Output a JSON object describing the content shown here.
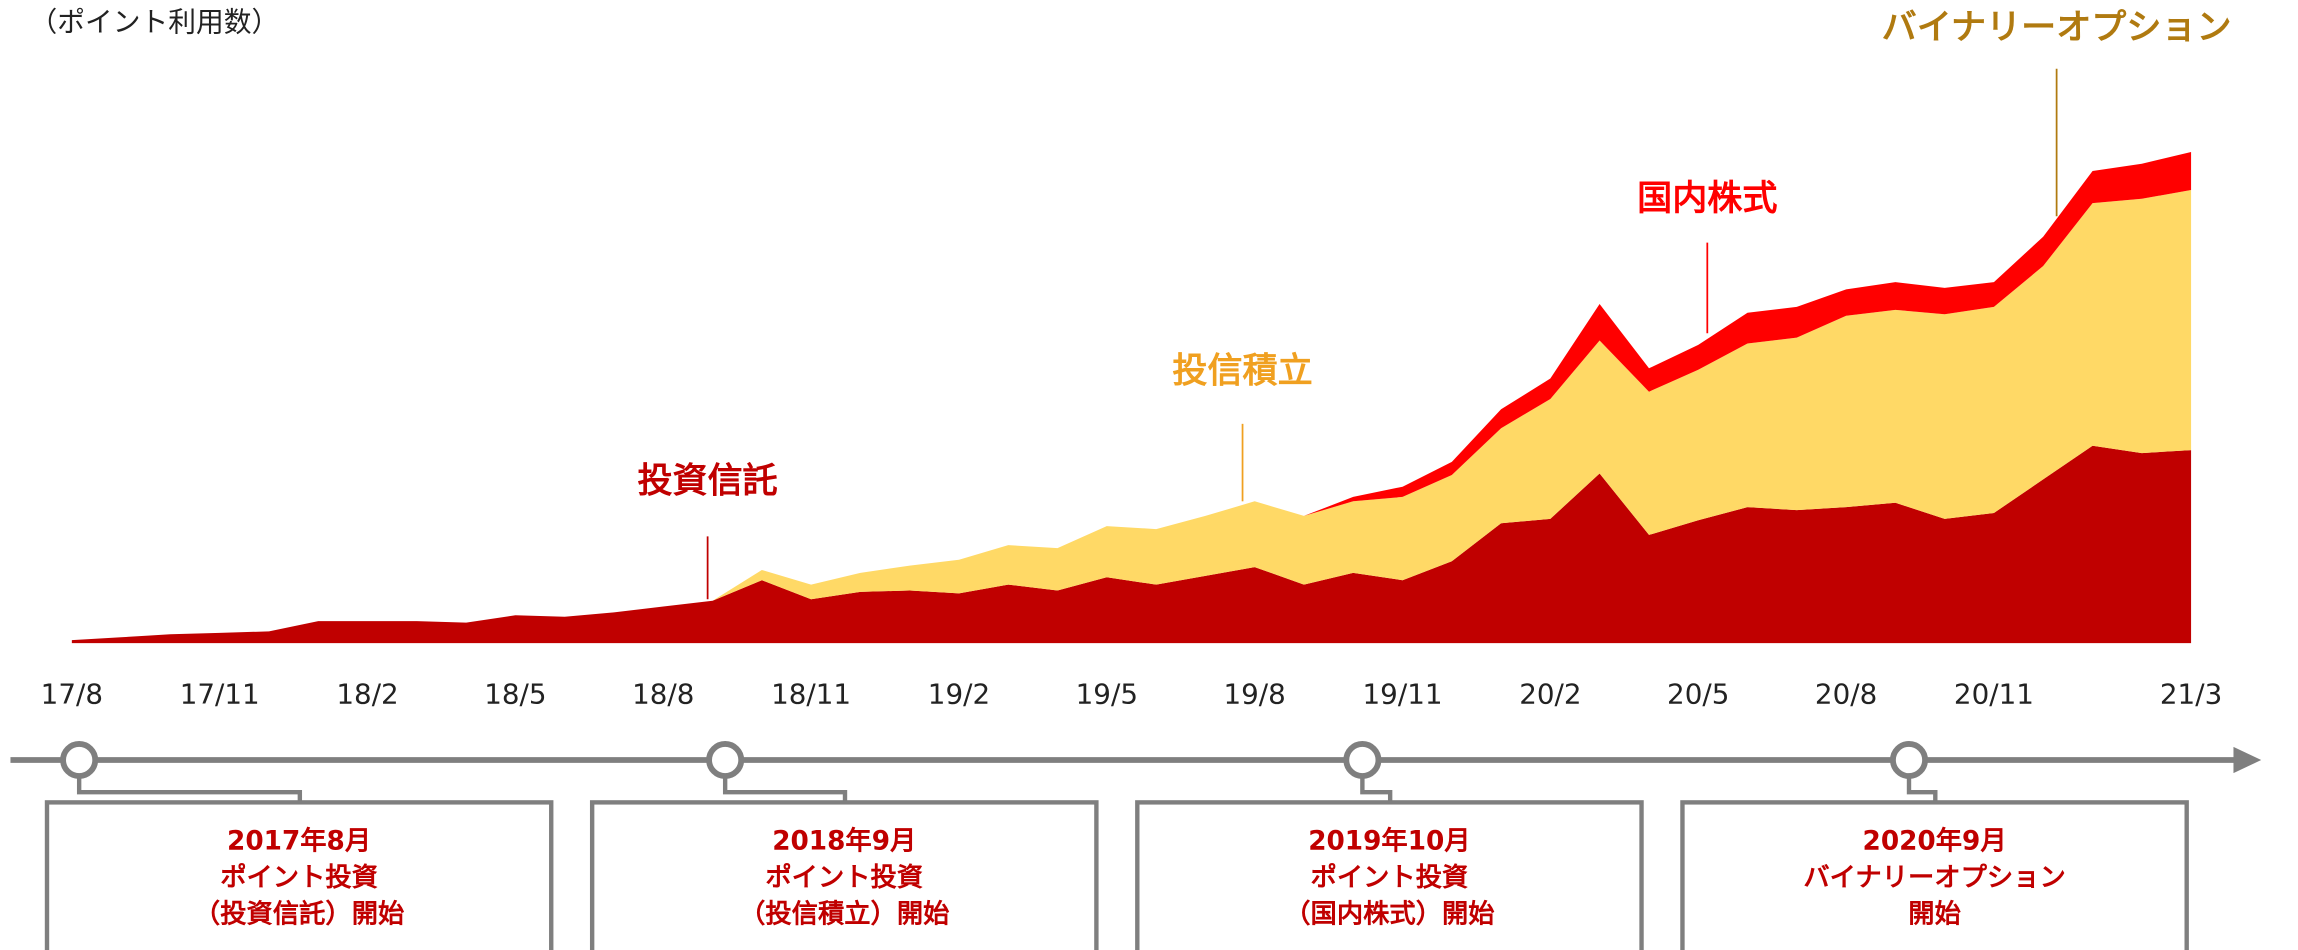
{
  "chart_data": {
    "type": "area",
    "y_label": "（ポイント利用数）",
    "categories": [
      "17/8",
      null,
      null,
      "17/11",
      null,
      null,
      "18/2",
      null,
      null,
      "18/5",
      null,
      null,
      "18/8",
      null,
      null,
      "18/11",
      null,
      null,
      "19/2",
      null,
      null,
      "19/5",
      null,
      null,
      "19/8",
      null,
      null,
      "19/11",
      null,
      null,
      "20/2",
      null,
      null,
      "20/5",
      null,
      null,
      "20/8",
      null,
      null,
      "20/11",
      null,
      null,
      null,
      "21/3"
    ],
    "series": [
      {
        "name": "投資信託",
        "color": "#c00000",
        "values": [
          2,
          4,
          6,
          7,
          8,
          15,
          15,
          15,
          14,
          19,
          18,
          21,
          25,
          29,
          43,
          30,
          35,
          36,
          34,
          40,
          36,
          45,
          40,
          46,
          52,
          40,
          48,
          43,
          56,
          82,
          85,
          116,
          74,
          84,
          93,
          91,
          93,
          96,
          85,
          89,
          112,
          135,
          130,
          132
        ]
      },
      {
        "name": "投信積立",
        "color": "#ffd966",
        "values": [
          0,
          0,
          0,
          0,
          0,
          0,
          0,
          0,
          0,
          0,
          0,
          0,
          0,
          0,
          7,
          10,
          13,
          17,
          23,
          27,
          29,
          35,
          38,
          41,
          45,
          47,
          49,
          57,
          59,
          65,
          82,
          91,
          98,
          103,
          112,
          118,
          131,
          132,
          140,
          141,
          146,
          166,
          174,
          178
        ]
      },
      {
        "name": "国内株式",
        "color": "#ff0000",
        "values": [
          0,
          0,
          0,
          0,
          0,
          0,
          0,
          0,
          0,
          0,
          0,
          0,
          0,
          0,
          0,
          0,
          0,
          0,
          0,
          0,
          0,
          0,
          0,
          0,
          0,
          0,
          3,
          7,
          9,
          13,
          14,
          25,
          16,
          17,
          21,
          21,
          18,
          19,
          18,
          17,
          20,
          22,
          24,
          26
        ]
      }
    ],
    "annotations": [
      {
        "text": "投資信託",
        "color": "#c00000"
      },
      {
        "text": "投信積立",
        "color": "#f0a020"
      },
      {
        "text": "国内株式",
        "color": "#ff0000"
      },
      {
        "text": "バイナリーオプション",
        "color": "#b07a10"
      }
    ]
  },
  "milestones": [
    {
      "lines": [
        "2017年8月",
        "ポイント投資",
        "（投資信託）開始"
      ]
    },
    {
      "lines": [
        "2018年9月",
        "ポイント投資",
        "（投信積立）開始"
      ]
    },
    {
      "lines": [
        "2019年10月",
        "ポイント投資",
        "（国内株式）開始"
      ]
    },
    {
      "lines": [
        "2020年9月",
        "バイナリーオプション",
        "開始"
      ]
    }
  ]
}
